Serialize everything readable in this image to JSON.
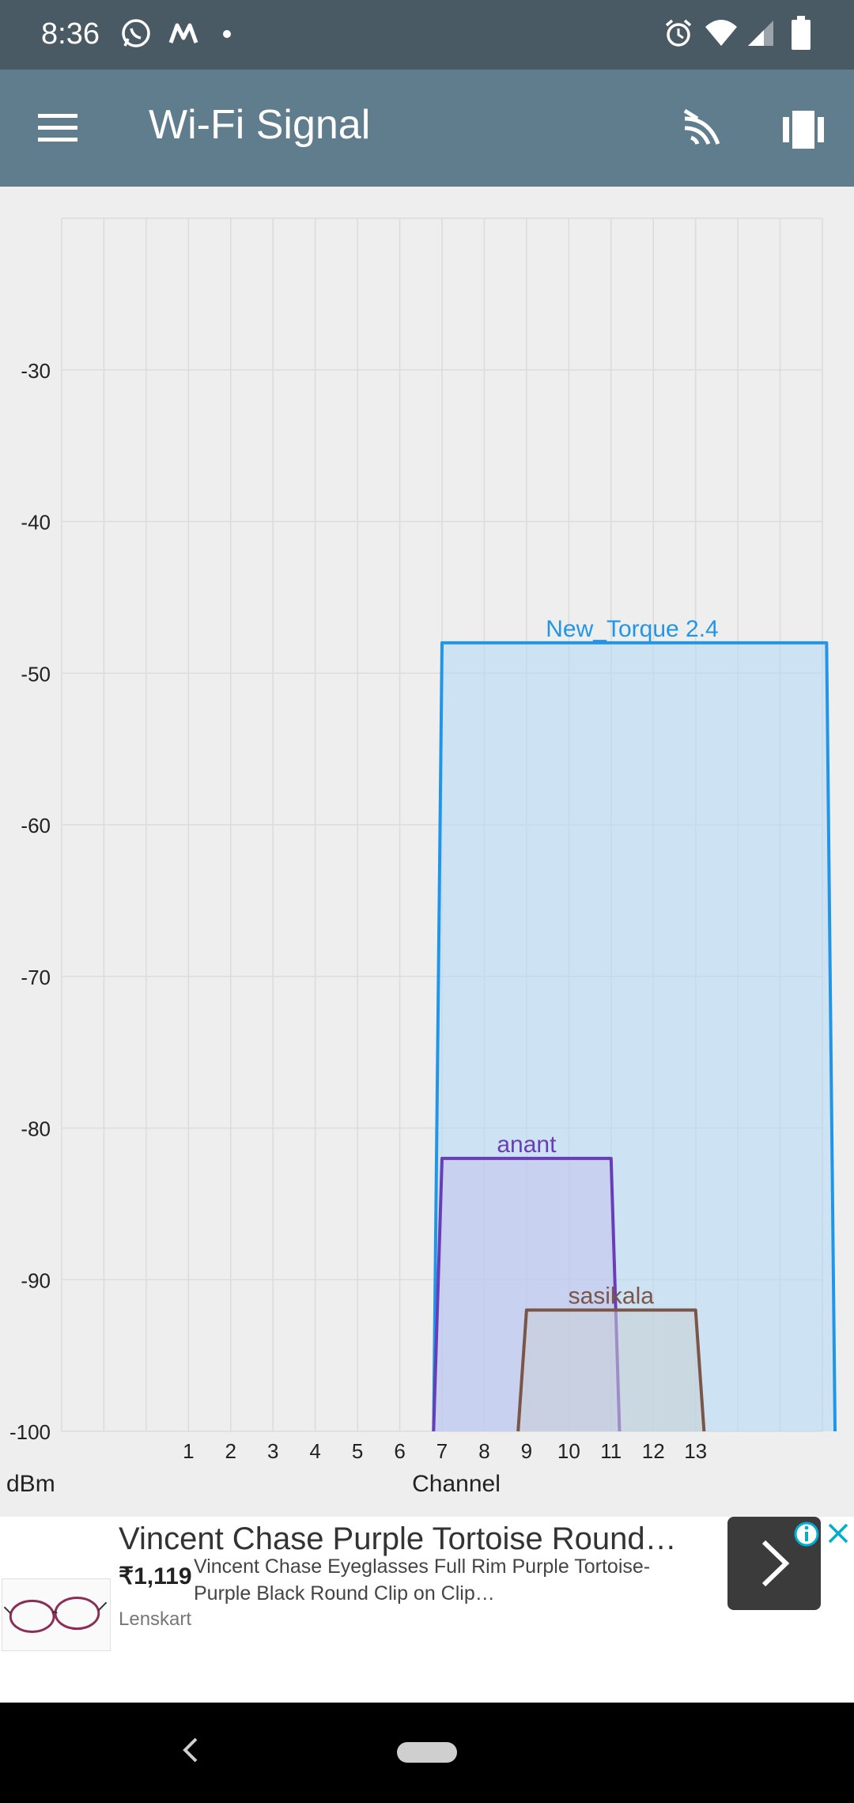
{
  "status_bar": {
    "time": "8:36",
    "icons": [
      "whatsapp-icon",
      "myntra-icon",
      "notification-dot-icon",
      "alarm-icon",
      "wifi-icon",
      "signal-icon",
      "battery-icon"
    ]
  },
  "app_bar": {
    "title": "Wi-Fi Signal",
    "icons": [
      "menu-icon",
      "wifi-band-icon",
      "view-toggle-icon"
    ]
  },
  "chart_data": {
    "type": "area",
    "xlabel": "Channel",
    "ylabel": "dBm",
    "x_ticks": [
      1,
      2,
      3,
      4,
      5,
      6,
      7,
      8,
      9,
      10,
      11,
      12,
      13
    ],
    "y_ticks": [
      -30,
      -40,
      -50,
      -60,
      -70,
      -80,
      -90,
      -100
    ],
    "xlim": [
      -2,
      16
    ],
    "ylim": [
      -100,
      -20
    ],
    "grid": true,
    "series": [
      {
        "name": "New_Torque 2.4",
        "start_channel": 6.8,
        "end_channel": 16.3,
        "level": -48,
        "center_channel": 11.5,
        "color": "#2196e8",
        "fill": "#b3d8f5"
      },
      {
        "name": "anant",
        "start_channel": 6.8,
        "end_channel": 11.2,
        "level": -82,
        "center_channel": 9,
        "color": "#6a3db8",
        "fill": "#c5c3ec"
      },
      {
        "name": "sasikala",
        "start_channel": 8.8,
        "end_channel": 13.2,
        "level": -92,
        "center_channel": 11,
        "color": "#7a5548",
        "fill": "#c9cfd6"
      }
    ]
  },
  "ad": {
    "title": "Vincent Chase Purple Tortoise Round…",
    "price": "₹1,119",
    "description": "Vincent Chase Eyeglasses Full Rim Purple Tortoise-Purple Black Round Clip on Clip…",
    "advertiser": "Lenskart",
    "icons": [
      "eyeglasses-thumbnail",
      "chevron-right-icon",
      "ad-info-icon",
      "ad-close-icon"
    ],
    "colors": {
      "info": "#00aecd",
      "close": "#00aecd"
    }
  },
  "nav_bar": {
    "icons": [
      "back-icon",
      "home-pill-icon"
    ]
  }
}
